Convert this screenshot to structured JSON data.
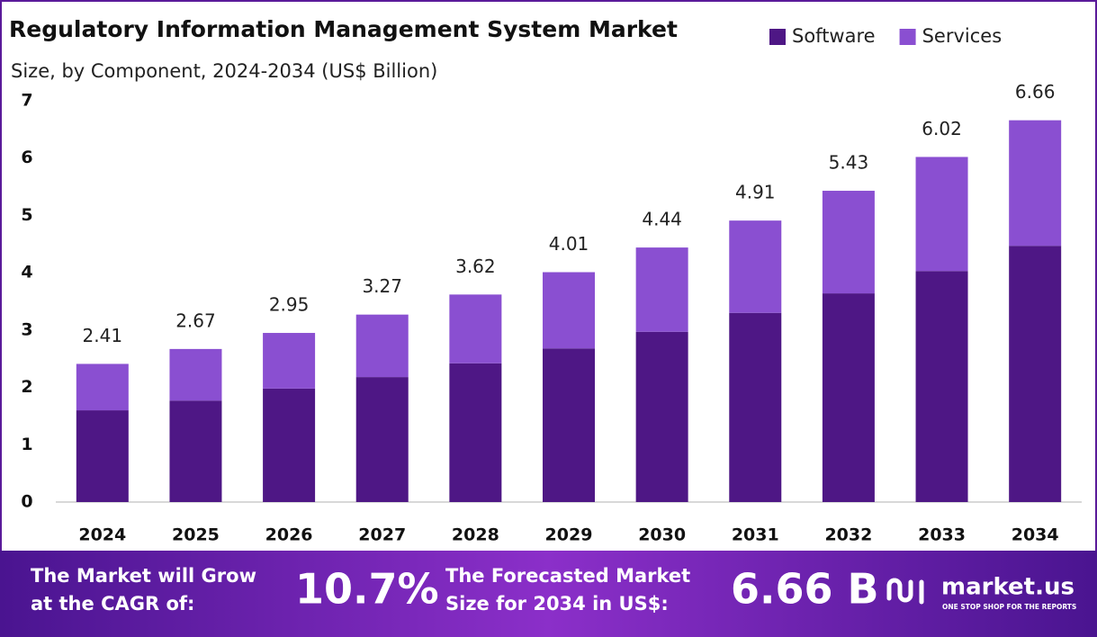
{
  "chart_data": {
    "type": "stacked-bar",
    "title": "Regulatory Information Management System Market",
    "subtitle": "Size, by Component, 2024-2034 (US$ Billion)",
    "categories": [
      "2024",
      "2025",
      "2026",
      "2027",
      "2028",
      "2029",
      "2030",
      "2031",
      "2032",
      "2033",
      "2034"
    ],
    "series": [
      {
        "name": "Software",
        "color": "#4e1785",
        "values": [
          1.6,
          1.77,
          1.98,
          2.18,
          2.42,
          2.68,
          2.97,
          3.3,
          3.64,
          4.03,
          4.47
        ]
      },
      {
        "name": "Services",
        "color": "#8a4fd1",
        "values": [
          0.81,
          0.9,
          0.97,
          1.09,
          1.2,
          1.33,
          1.47,
          1.61,
          1.79,
          1.99,
          2.19
        ]
      }
    ],
    "totals": [
      2.41,
      2.67,
      2.95,
      3.27,
      3.62,
      4.01,
      4.44,
      4.91,
      5.43,
      6.02,
      6.66
    ],
    "ylim": [
      0,
      7
    ],
    "yticks": [
      0,
      1,
      2,
      3,
      4,
      5,
      6,
      7
    ],
    "grid": false,
    "legend": "top-right"
  },
  "footer": {
    "cagr_text": [
      "The Market will Grow",
      "at the CAGR of:"
    ],
    "cagr": "10.7%",
    "forecast_text": [
      "The Forecasted Market",
      "Size for 2034 in US$:"
    ],
    "forecast": "6.66 B",
    "brand": "market.us",
    "tagline": "ONE STOP SHOP FOR THE REPORTS"
  }
}
